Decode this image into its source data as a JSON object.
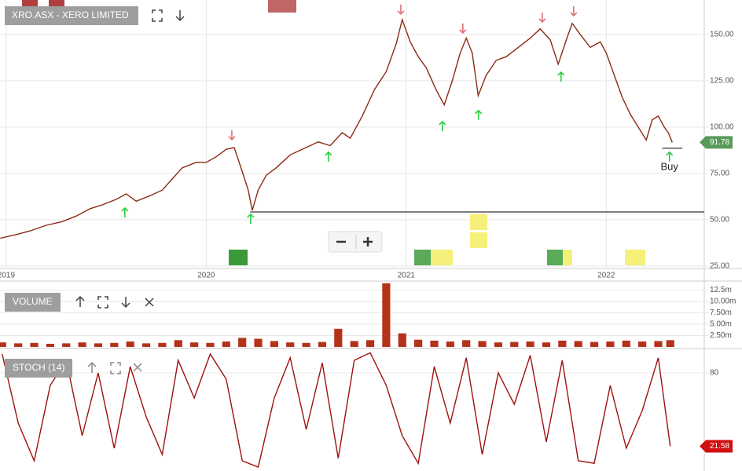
{
  "chart_data": [
    {
      "type": "line",
      "title": "XRO.ASX - XERO LIMITED",
      "color": "#8b2a14",
      "x": [
        2018.97,
        2019.05,
        2019.12,
        2019.2,
        2019.28,
        2019.35,
        2019.42,
        2019.48,
        2019.55,
        2019.6,
        2019.65,
        2019.72,
        2019.78,
        2019.83,
        2019.88,
        2019.95,
        2020.0,
        2020.05,
        2020.1,
        2020.14,
        2020.18,
        2020.21,
        2020.23,
        2020.26,
        2020.3,
        2020.35,
        2020.42,
        2020.5,
        2020.56,
        2020.62,
        2020.68,
        2020.72,
        2020.78,
        2020.84,
        2020.9,
        2020.95,
        2020.98,
        2021.02,
        2021.06,
        2021.1,
        2021.15,
        2021.19,
        2021.23,
        2021.27,
        2021.3,
        2021.33,
        2021.36,
        2021.4,
        2021.45,
        2021.5,
        2021.56,
        2021.62,
        2021.67,
        2021.72,
        2021.76,
        2021.8,
        2021.83,
        2021.87,
        2021.92,
        2021.97,
        2022.0,
        2022.04,
        2022.08,
        2022.12,
        2022.16,
        2022.2,
        2022.23,
        2022.26,
        2022.29,
        2022.31,
        2022.33
      ],
      "values": [
        40,
        42,
        44,
        47,
        49,
        52,
        56,
        58,
        61,
        64,
        60,
        63,
        66,
        72,
        78,
        81,
        81,
        84,
        88,
        89,
        76,
        66,
        55,
        66,
        74,
        78,
        85,
        89,
        92,
        90,
        97,
        94,
        106,
        120,
        130,
        145,
        158,
        146,
        138,
        132,
        120,
        112,
        125,
        140,
        148,
        140,
        117,
        128,
        136,
        138,
        143,
        148,
        153,
        147,
        134,
        147,
        156,
        150,
        143,
        146,
        140,
        128,
        116,
        107,
        100,
        93,
        104,
        106,
        100,
        97,
        91.78
      ],
      "xlim": [
        2018.969,
        2022.49
      ],
      "xticks": [
        2019,
        2020,
        2021,
        2022
      ],
      "ylim": [
        23.7,
        168.6
      ],
      "yticks": [
        {
          "value": 25,
          "label": "25.00"
        },
        {
          "value": 50,
          "label": "50.00"
        },
        {
          "value": 75,
          "label": "75.00"
        },
        {
          "value": 100,
          "label": "100.00"
        },
        {
          "value": 125,
          "label": "125.00"
        },
        {
          "value": 150,
          "label": "150.00"
        }
      ],
      "grid": true,
      "buy_signals": {
        "color": "#2ecc40",
        "x": [
          2019.593,
          2020.222,
          2020.611,
          2021.181,
          2021.361,
          2021.774,
          2022.316
        ],
        "y": [
          53.8,
          50.4,
          83.9,
          100.4,
          106.4,
          127.1,
          83.9
        ]
      },
      "sell_signals": {
        "color": "#e07070",
        "x": [
          2020.128,
          2020.973,
          2021.283,
          2021.68,
          2021.837
        ],
        "y": [
          95.8,
          163.6,
          153.4,
          159.3,
          162.7
        ]
      },
      "levels": [
        {
          "value": 54.2,
          "from": 2020.22,
          "to": 2022.49
        },
        {
          "value": 88.6,
          "from": 2022.28,
          "to": 2022.38
        }
      ],
      "annotations": [
        {
          "text": "Buy",
          "x": 2022.316,
          "y": 78.4
        }
      ]
    },
    {
      "type": "bar",
      "title": "VOLUME",
      "color": "#b5321a",
      "x": [
        2018.98,
        2019.06,
        2019.14,
        2019.22,
        2019.3,
        2019.38,
        2019.46,
        2019.54,
        2019.62,
        2019.7,
        2019.78,
        2019.86,
        2019.94,
        2020.02,
        2020.1,
        2020.18,
        2020.26,
        2020.34,
        2020.42,
        2020.5,
        2020.58,
        2020.66,
        2020.74,
        2020.82,
        2020.9,
        2020.98,
        2021.06,
        2021.14,
        2021.22,
        2021.3,
        2021.38,
        2021.46,
        2021.54,
        2021.62,
        2021.7,
        2021.78,
        2021.86,
        2021.94,
        2022.02,
        2022.1,
        2022.18,
        2022.26,
        2022.32
      ],
      "values": [
        1.0,
        0.8,
        0.9,
        0.7,
        0.8,
        1.0,
        0.8,
        0.9,
        1.2,
        0.8,
        0.9,
        1.5,
        1.0,
        0.9,
        1.2,
        2.0,
        1.8,
        1.3,
        1.0,
        0.9,
        1.1,
        4.0,
        1.3,
        1.5,
        14.0,
        3.0,
        1.6,
        1.4,
        1.2,
        1.5,
        1.3,
        1.0,
        1.1,
        1.2,
        1.0,
        1.4,
        1.3,
        1.1,
        1.2,
        1.4,
        1.2,
        1.3,
        1.5
      ],
      "ylim": [
        0,
        14.5
      ],
      "yticks": [
        {
          "value": 2.5,
          "label": "2.50m"
        },
        {
          "value": 5,
          "label": "5.00m"
        },
        {
          "value": 7.5,
          "label": "7.50m"
        },
        {
          "value": 10,
          "label": "10.00m"
        },
        {
          "value": 12.5,
          "label": "12.5m"
        }
      ]
    },
    {
      "type": "line",
      "title": "STOCH (14)",
      "color": "#a01010",
      "x": [
        2018.98,
        2019.06,
        2019.14,
        2019.22,
        2019.3,
        2019.38,
        2019.46,
        2019.54,
        2019.62,
        2019.7,
        2019.78,
        2019.86,
        2019.94,
        2020.02,
        2020.1,
        2020.18,
        2020.26,
        2020.34,
        2020.42,
        2020.5,
        2020.58,
        2020.66,
        2020.74,
        2020.82,
        2020.9,
        2020.98,
        2021.06,
        2021.14,
        2021.22,
        2021.3,
        2021.38,
        2021.46,
        2021.54,
        2021.62,
        2021.7,
        2021.78,
        2021.86,
        2021.94,
        2022.02,
        2022.1,
        2022.18,
        2022.26,
        2022.32
      ],
      "values": [
        95,
        40,
        10,
        70,
        90,
        30,
        80,
        20,
        85,
        45,
        15,
        90,
        60,
        95,
        75,
        10,
        5,
        60,
        92,
        35,
        88,
        12,
        90,
        96,
        70,
        30,
        8,
        85,
        40,
        92,
        15,
        80,
        55,
        94,
        25,
        90,
        10,
        8,
        70,
        20,
        50,
        92,
        21.58
      ],
      "ylim": [
        1.9,
        98.75
      ],
      "yticks": [
        80
      ],
      "grid": true
    }
  ]
}
